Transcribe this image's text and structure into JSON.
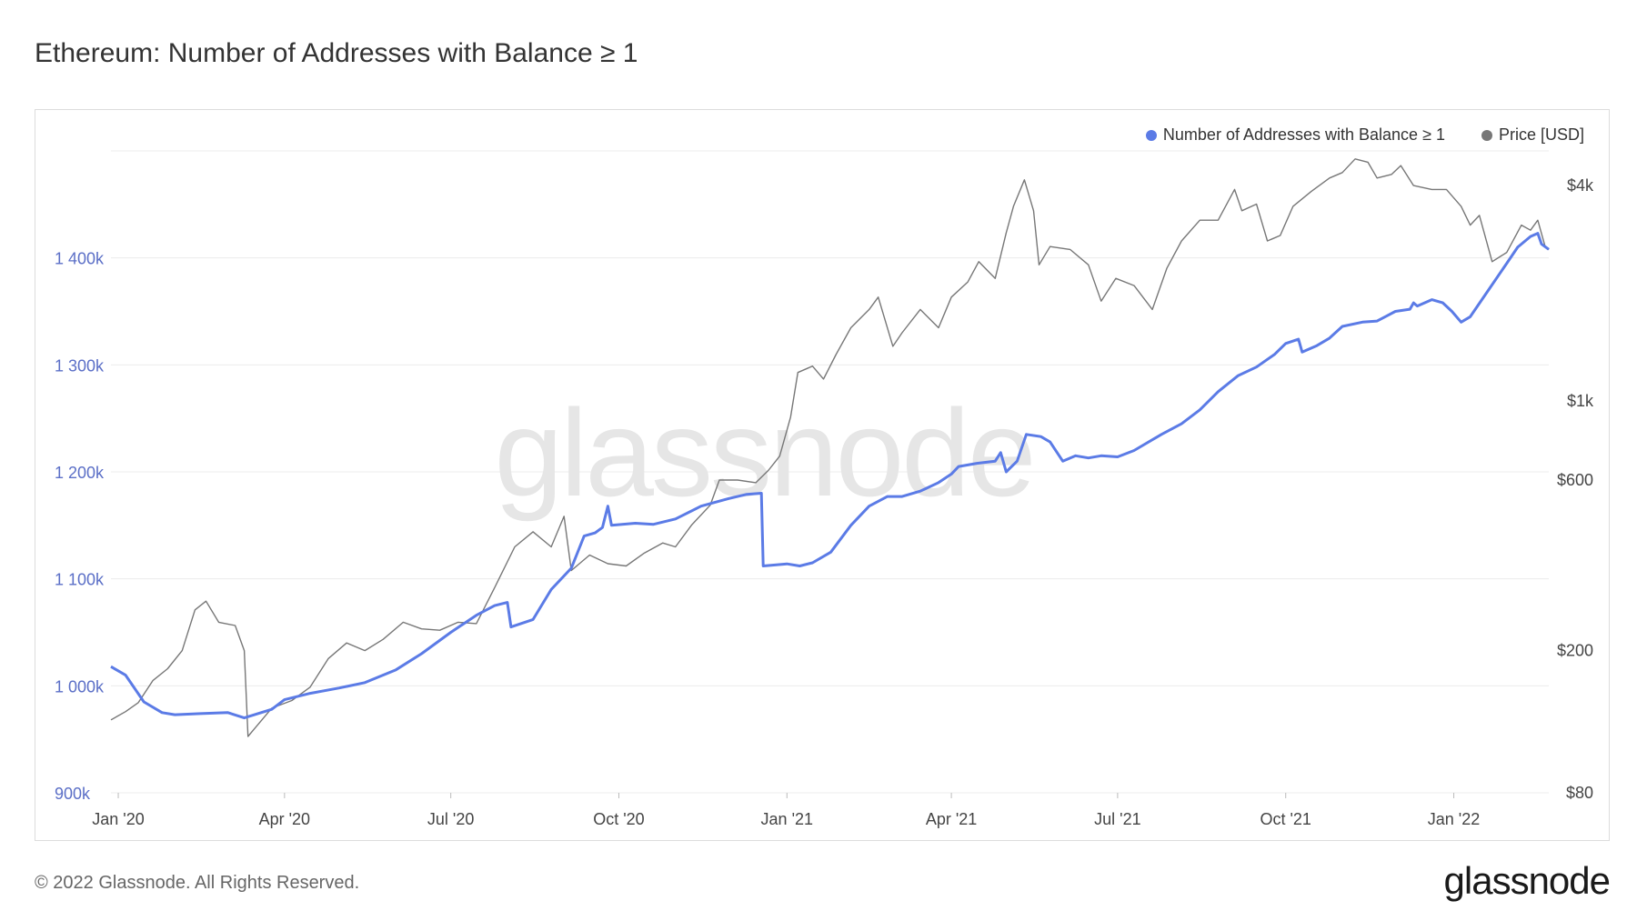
{
  "title": "Ethereum: Number of Addresses with Balance ≥ 1",
  "footer": "© 2022 Glassnode. All Rights Reserved.",
  "brand": "glassnode",
  "watermark": "glassnode",
  "colors": {
    "addresses": "#5b7be6",
    "price": "#777777",
    "left_axis": "#5b6fc7",
    "right_axis": "#444444",
    "grid": "#ececec"
  },
  "legend": [
    {
      "label": "Number of Addresses with Balance ≥ 1",
      "color": "#5b7be6"
    },
    {
      "label": "Price [USD]",
      "color": "#777777"
    }
  ],
  "chart_data": {
    "type": "line",
    "title": "Ethereum: Number of Addresses with Balance ≥ 1",
    "x_range": [
      "2019-12-28",
      "2022-02-15"
    ],
    "x_ticks": [
      {
        "label": "Jan '20",
        "date": "2020-01-01"
      },
      {
        "label": "Apr '20",
        "date": "2020-04-01"
      },
      {
        "label": "Jul '20",
        "date": "2020-07-01"
      },
      {
        "label": "Oct '20",
        "date": "2020-10-01"
      },
      {
        "label": "Jan '21",
        "date": "2021-01-01"
      },
      {
        "label": "Apr '21",
        "date": "2021-04-01"
      },
      {
        "label": "Jul '21",
        "date": "2021-07-01"
      },
      {
        "label": "Oct '21",
        "date": "2021-10-01"
      },
      {
        "label": "Jan '22",
        "date": "2022-01-01"
      }
    ],
    "y_left": {
      "scale": "linear",
      "min": 900000,
      "max": 1500000,
      "ticks": [
        {
          "label": "900k",
          "value": 900000
        },
        {
          "label": "1 000k",
          "value": 1000000
        },
        {
          "label": "1 100k",
          "value": 1100000
        },
        {
          "label": "1 200k",
          "value": 1200000
        },
        {
          "label": "1 300k",
          "value": 1300000
        },
        {
          "label": "1 400k",
          "value": 1400000
        }
      ]
    },
    "y_right": {
      "scale": "log",
      "min": 80,
      "max": 5000,
      "ticks": [
        {
          "label": "$80",
          "value": 80
        },
        {
          "label": "$200",
          "value": 200
        },
        {
          "label": "$600",
          "value": 600
        },
        {
          "label": "$1k",
          "value": 1000
        },
        {
          "label": "$4k",
          "value": 4000
        }
      ]
    },
    "grid": true,
    "legend_position": "top-right",
    "series": [
      {
        "name": "Number of Addresses with Balance ≥ 1",
        "axis": "left",
        "color": "#5b7be6",
        "points": [
          [
            "2019-12-28",
            1018000
          ],
          [
            "2020-01-05",
            1010000
          ],
          [
            "2020-01-15",
            985000
          ],
          [
            "2020-01-25",
            975000
          ],
          [
            "2020-02-01",
            973000
          ],
          [
            "2020-02-15",
            974000
          ],
          [
            "2020-03-01",
            975000
          ],
          [
            "2020-03-10",
            970000
          ],
          [
            "2020-03-25",
            978000
          ],
          [
            "2020-04-01",
            987000
          ],
          [
            "2020-04-15",
            993000
          ],
          [
            "2020-05-01",
            998000
          ],
          [
            "2020-05-15",
            1003000
          ],
          [
            "2020-06-01",
            1015000
          ],
          [
            "2020-06-15",
            1030000
          ],
          [
            "2020-07-01",
            1050000
          ],
          [
            "2020-07-15",
            1066000
          ],
          [
            "2020-07-25",
            1075000
          ],
          [
            "2020-08-01",
            1078000
          ],
          [
            "2020-08-03",
            1055000
          ],
          [
            "2020-08-15",
            1062000
          ],
          [
            "2020-08-25",
            1090000
          ],
          [
            "2020-09-05",
            1110000
          ],
          [
            "2020-09-12",
            1140000
          ],
          [
            "2020-09-18",
            1143000
          ],
          [
            "2020-09-22",
            1148000
          ],
          [
            "2020-09-25",
            1168000
          ],
          [
            "2020-09-27",
            1150000
          ],
          [
            "2020-10-10",
            1152000
          ],
          [
            "2020-10-20",
            1151000
          ],
          [
            "2020-11-01",
            1156000
          ],
          [
            "2020-11-15",
            1168000
          ],
          [
            "2020-11-30",
            1175000
          ],
          [
            "2020-12-10",
            1179000
          ],
          [
            "2020-12-18",
            1180000
          ],
          [
            "2020-12-19",
            1112000
          ],
          [
            "2021-01-01",
            1114000
          ],
          [
            "2021-01-08",
            1112000
          ],
          [
            "2021-01-15",
            1115000
          ],
          [
            "2021-01-25",
            1125000
          ],
          [
            "2021-02-05",
            1150000
          ],
          [
            "2021-02-15",
            1168000
          ],
          [
            "2021-02-25",
            1177000
          ],
          [
            "2021-03-05",
            1177000
          ],
          [
            "2021-03-15",
            1182000
          ],
          [
            "2021-03-25",
            1190000
          ],
          [
            "2021-04-01",
            1198000
          ],
          [
            "2021-04-05",
            1205000
          ],
          [
            "2021-04-15",
            1208000
          ],
          [
            "2021-04-25",
            1210000
          ],
          [
            "2021-04-28",
            1218000
          ],
          [
            "2021-05-01",
            1200000
          ],
          [
            "2021-05-07",
            1210000
          ],
          [
            "2021-05-12",
            1235000
          ],
          [
            "2021-05-20",
            1233000
          ],
          [
            "2021-05-25",
            1228000
          ],
          [
            "2021-06-01",
            1210000
          ],
          [
            "2021-06-08",
            1215000
          ],
          [
            "2021-06-15",
            1213000
          ],
          [
            "2021-06-22",
            1215000
          ],
          [
            "2021-07-01",
            1214000
          ],
          [
            "2021-07-10",
            1220000
          ],
          [
            "2021-07-25",
            1235000
          ],
          [
            "2021-08-05",
            1245000
          ],
          [
            "2021-08-15",
            1258000
          ],
          [
            "2021-08-25",
            1275000
          ],
          [
            "2021-09-05",
            1290000
          ],
          [
            "2021-09-15",
            1298000
          ],
          [
            "2021-09-25",
            1310000
          ],
          [
            "2021-10-01",
            1320000
          ],
          [
            "2021-10-08",
            1324000
          ],
          [
            "2021-10-10",
            1312000
          ],
          [
            "2021-10-18",
            1318000
          ],
          [
            "2021-10-25",
            1325000
          ],
          [
            "2021-11-01",
            1336000
          ],
          [
            "2021-11-12",
            1340000
          ],
          [
            "2021-11-20",
            1341000
          ],
          [
            "2021-11-30",
            1350000
          ],
          [
            "2021-12-08",
            1352000
          ],
          [
            "2021-12-10",
            1358000
          ],
          [
            "2021-12-12",
            1355000
          ],
          [
            "2021-12-20",
            1361000
          ],
          [
            "2021-12-26",
            1358000
          ],
          [
            "2021-12-31",
            1350000
          ],
          [
            "2022-01-05",
            1340000
          ],
          [
            "2022-01-10",
            1345000
          ],
          [
            "2022-01-20",
            1370000
          ],
          [
            "2022-01-30",
            1395000
          ],
          [
            "2022-02-05",
            1410000
          ],
          [
            "2022-02-12",
            1420000
          ],
          [
            "2022-02-16",
            1423000
          ],
          [
            "2022-02-18",
            1413000
          ],
          [
            "2022-02-22",
            1408000
          ]
        ]
      },
      {
        "name": "Price [USD]",
        "axis": "right",
        "color": "#777777",
        "points": [
          [
            "2019-12-28",
            128
          ],
          [
            "2020-01-05",
            135
          ],
          [
            "2020-01-12",
            143
          ],
          [
            "2020-01-20",
            165
          ],
          [
            "2020-01-28",
            178
          ],
          [
            "2020-02-05",
            200
          ],
          [
            "2020-02-12",
            260
          ],
          [
            "2020-02-18",
            275
          ],
          [
            "2020-02-25",
            240
          ],
          [
            "2020-03-05",
            235
          ],
          [
            "2020-03-10",
            200
          ],
          [
            "2020-03-12",
            115
          ],
          [
            "2020-03-15",
            120
          ],
          [
            "2020-03-25",
            138
          ],
          [
            "2020-04-05",
            145
          ],
          [
            "2020-04-15",
            158
          ],
          [
            "2020-04-25",
            190
          ],
          [
            "2020-05-05",
            210
          ],
          [
            "2020-05-15",
            200
          ],
          [
            "2020-05-25",
            215
          ],
          [
            "2020-06-05",
            240
          ],
          [
            "2020-06-15",
            230
          ],
          [
            "2020-06-25",
            228
          ],
          [
            "2020-07-05",
            240
          ],
          [
            "2020-07-15",
            238
          ],
          [
            "2020-07-25",
            300
          ],
          [
            "2020-08-05",
            390
          ],
          [
            "2020-08-15",
            430
          ],
          [
            "2020-08-25",
            390
          ],
          [
            "2020-09-01",
            475
          ],
          [
            "2020-09-05",
            335
          ],
          [
            "2020-09-15",
            370
          ],
          [
            "2020-09-25",
            350
          ],
          [
            "2020-10-05",
            345
          ],
          [
            "2020-10-15",
            375
          ],
          [
            "2020-10-25",
            400
          ],
          [
            "2020-11-01",
            390
          ],
          [
            "2020-11-10",
            450
          ],
          [
            "2020-11-20",
            510
          ],
          [
            "2020-11-25",
            600
          ],
          [
            "2020-12-05",
            600
          ],
          [
            "2020-12-15",
            590
          ],
          [
            "2020-12-22",
            640
          ],
          [
            "2020-12-28",
            700
          ],
          [
            "2021-01-03",
            900
          ],
          [
            "2021-01-07",
            1200
          ],
          [
            "2021-01-15",
            1250
          ],
          [
            "2021-01-21",
            1150
          ],
          [
            "2021-01-28",
            1350
          ],
          [
            "2021-02-05",
            1600
          ],
          [
            "2021-02-15",
            1800
          ],
          [
            "2021-02-20",
            1950
          ],
          [
            "2021-02-28",
            1420
          ],
          [
            "2021-03-05",
            1550
          ],
          [
            "2021-03-15",
            1800
          ],
          [
            "2021-03-25",
            1600
          ],
          [
            "2021-04-01",
            1950
          ],
          [
            "2021-04-10",
            2150
          ],
          [
            "2021-04-16",
            2450
          ],
          [
            "2021-04-25",
            2200
          ],
          [
            "2021-05-01",
            2950
          ],
          [
            "2021-05-05",
            3500
          ],
          [
            "2021-05-11",
            4150
          ],
          [
            "2021-05-16",
            3400
          ],
          [
            "2021-05-19",
            2400
          ],
          [
            "2021-05-25",
            2700
          ],
          [
            "2021-06-05",
            2650
          ],
          [
            "2021-06-15",
            2400
          ],
          [
            "2021-06-22",
            1900
          ],
          [
            "2021-06-30",
            2200
          ],
          [
            "2021-07-10",
            2100
          ],
          [
            "2021-07-20",
            1800
          ],
          [
            "2021-07-28",
            2350
          ],
          [
            "2021-08-05",
            2800
          ],
          [
            "2021-08-15",
            3200
          ],
          [
            "2021-08-25",
            3200
          ],
          [
            "2021-09-03",
            3900
          ],
          [
            "2021-09-07",
            3400
          ],
          [
            "2021-09-15",
            3550
          ],
          [
            "2021-09-21",
            2800
          ],
          [
            "2021-09-28",
            2900
          ],
          [
            "2021-10-05",
            3500
          ],
          [
            "2021-10-15",
            3850
          ],
          [
            "2021-10-25",
            4200
          ],
          [
            "2021-11-01",
            4350
          ],
          [
            "2021-11-08",
            4750
          ],
          [
            "2021-11-15",
            4650
          ],
          [
            "2021-11-20",
            4200
          ],
          [
            "2021-11-28",
            4300
          ],
          [
            "2021-12-03",
            4550
          ],
          [
            "2021-12-10",
            4000
          ],
          [
            "2021-12-20",
            3900
          ],
          [
            "2021-12-28",
            3900
          ],
          [
            "2022-01-05",
            3500
          ],
          [
            "2022-01-10",
            3100
          ],
          [
            "2022-01-15",
            3300
          ],
          [
            "2022-01-22",
            2450
          ],
          [
            "2022-01-30",
            2600
          ],
          [
            "2022-02-07",
            3100
          ],
          [
            "2022-02-12",
            3000
          ],
          [
            "2022-02-16",
            3200
          ],
          [
            "2022-02-20",
            2700
          ],
          [
            "2022-02-22",
            2650
          ]
        ]
      }
    ]
  }
}
